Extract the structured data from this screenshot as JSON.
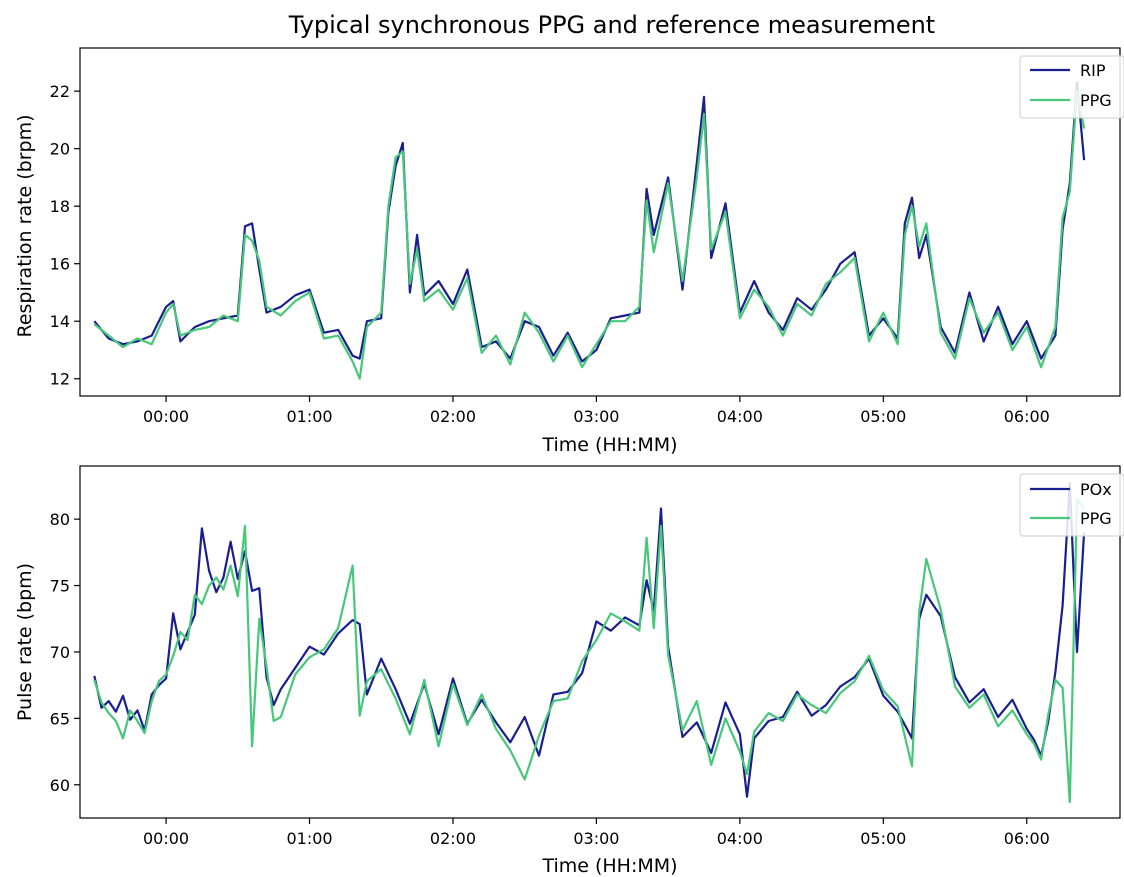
{
  "figure_title": "Typical synchronous PPG and reference measurement",
  "colors": {
    "reference": "#1a1f8f",
    "ppg": "#46c77a"
  },
  "chart_data": [
    {
      "type": "line",
      "xlabel": "Time (HH:MM)",
      "ylabel": "Respiration rate (brpm)",
      "x_ticks": [
        {
          "h": 0,
          "label": "00:00"
        },
        {
          "h": 1,
          "label": "01:00"
        },
        {
          "h": 2,
          "label": "02:00"
        },
        {
          "h": 3,
          "label": "03:00"
        },
        {
          "h": 4,
          "label": "04:00"
        },
        {
          "h": 5,
          "label": "05:00"
        },
        {
          "h": 6,
          "label": "06:00"
        }
      ],
      "y_ticks": [
        {
          "v": 12,
          "label": "12"
        },
        {
          "v": 14,
          "label": "14"
        },
        {
          "v": 16,
          "label": "16"
        },
        {
          "v": 18,
          "label": "18"
        },
        {
          "v": 20,
          "label": "20"
        },
        {
          "v": 22,
          "label": "22"
        }
      ],
      "xlim": [
        -0.6,
        6.65
      ],
      "ylim": [
        11.4,
        23.5
      ],
      "legend": {
        "position": "top-right",
        "entries": [
          "RIP",
          "PPG"
        ]
      },
      "grid": false,
      "x_hours": [
        -0.5,
        -0.4,
        -0.3,
        -0.2,
        -0.1,
        0.0,
        0.05,
        0.1,
        0.2,
        0.3,
        0.4,
        0.5,
        0.55,
        0.6,
        0.65,
        0.7,
        0.8,
        0.9,
        1.0,
        1.1,
        1.2,
        1.3,
        1.35,
        1.4,
        1.5,
        1.55,
        1.6,
        1.65,
        1.7,
        1.75,
        1.8,
        1.9,
        2.0,
        2.1,
        2.2,
        2.3,
        2.4,
        2.5,
        2.6,
        2.7,
        2.8,
        2.9,
        3.0,
        3.1,
        3.2,
        3.3,
        3.35,
        3.4,
        3.5,
        3.6,
        3.7,
        3.75,
        3.8,
        3.9,
        4.0,
        4.1,
        4.2,
        4.3,
        4.4,
        4.5,
        4.6,
        4.7,
        4.8,
        4.9,
        5.0,
        5.1,
        5.15,
        5.2,
        5.25,
        5.3,
        5.4,
        5.5,
        5.6,
        5.7,
        5.8,
        5.9,
        6.0,
        6.1,
        6.2,
        6.25,
        6.3,
        6.35,
        6.4
      ],
      "series": [
        {
          "name": "RIP",
          "color_key": "reference",
          "values": [
            14.0,
            13.4,
            13.2,
            13.3,
            13.5,
            14.5,
            14.7,
            13.3,
            13.8,
            14.0,
            14.1,
            14.2,
            17.3,
            17.4,
            15.8,
            14.3,
            14.5,
            14.9,
            15.1,
            13.6,
            13.7,
            12.8,
            12.7,
            14.0,
            14.1,
            17.8,
            19.4,
            20.2,
            15.0,
            17.0,
            14.9,
            15.4,
            14.6,
            15.8,
            13.1,
            13.3,
            12.7,
            14.0,
            13.8,
            12.8,
            13.6,
            12.6,
            13.0,
            14.1,
            14.2,
            14.3,
            18.6,
            17.0,
            19.0,
            15.1,
            19.5,
            21.8,
            16.2,
            18.1,
            14.3,
            15.4,
            14.3,
            13.7,
            14.8,
            14.4,
            15.1,
            16.0,
            16.4,
            13.5,
            14.1,
            13.4,
            17.4,
            18.3,
            16.2,
            17.0,
            13.8,
            12.9,
            15.0,
            13.3,
            14.5,
            13.2,
            14.0,
            12.7,
            13.5,
            17.2,
            18.8,
            22.3,
            19.6
          ]
        },
        {
          "name": "PPG",
          "color_key": "ppg",
          "values": [
            13.9,
            13.5,
            13.1,
            13.4,
            13.2,
            14.3,
            14.6,
            13.5,
            13.7,
            13.8,
            14.2,
            14.0,
            17.0,
            16.8,
            16.1,
            14.5,
            14.2,
            14.7,
            15.0,
            13.4,
            13.5,
            12.6,
            12.0,
            13.8,
            14.3,
            18.0,
            19.7,
            19.9,
            15.3,
            16.5,
            14.7,
            15.1,
            14.4,
            15.5,
            12.9,
            13.5,
            12.5,
            14.3,
            13.6,
            12.6,
            13.5,
            12.4,
            13.2,
            14.0,
            14.0,
            14.5,
            18.2,
            16.4,
            18.8,
            15.4,
            19.0,
            21.2,
            16.5,
            17.8,
            14.1,
            15.1,
            14.5,
            13.5,
            14.6,
            14.2,
            15.3,
            15.7,
            16.2,
            13.3,
            14.3,
            13.2,
            17.0,
            18.0,
            16.6,
            17.4,
            13.6,
            12.7,
            14.8,
            13.6,
            14.3,
            13.0,
            13.8,
            12.4,
            13.8,
            17.6,
            18.5,
            22.0,
            20.7
          ]
        }
      ]
    },
    {
      "type": "line",
      "xlabel": "Time (HH:MM)",
      "ylabel": "Pulse rate (bpm)",
      "x_ticks": [
        {
          "h": 0,
          "label": "00:00"
        },
        {
          "h": 1,
          "label": "01:00"
        },
        {
          "h": 2,
          "label": "02:00"
        },
        {
          "h": 3,
          "label": "03:00"
        },
        {
          "h": 4,
          "label": "04:00"
        },
        {
          "h": 5,
          "label": "05:00"
        },
        {
          "h": 6,
          "label": "06:00"
        }
      ],
      "y_ticks": [
        {
          "v": 60,
          "label": "60"
        },
        {
          "v": 65,
          "label": "65"
        },
        {
          "v": 70,
          "label": "70"
        },
        {
          "v": 75,
          "label": "75"
        },
        {
          "v": 80,
          "label": "80"
        }
      ],
      "xlim": [
        -0.6,
        6.65
      ],
      "ylim": [
        57.5,
        84.0
      ],
      "legend": {
        "position": "top-right",
        "entries": [
          "POx",
          "PPG"
        ]
      },
      "grid": false,
      "x_hours": [
        -0.5,
        -0.45,
        -0.4,
        -0.35,
        -0.3,
        -0.25,
        -0.2,
        -0.15,
        -0.1,
        -0.05,
        0.0,
        0.05,
        0.1,
        0.15,
        0.2,
        0.25,
        0.3,
        0.35,
        0.4,
        0.45,
        0.5,
        0.55,
        0.6,
        0.65,
        0.7,
        0.75,
        0.8,
        0.9,
        1.0,
        1.1,
        1.2,
        1.3,
        1.35,
        1.4,
        1.5,
        1.6,
        1.7,
        1.8,
        1.9,
        2.0,
        2.1,
        2.2,
        2.3,
        2.4,
        2.5,
        2.6,
        2.7,
        2.8,
        2.9,
        3.0,
        3.1,
        3.2,
        3.3,
        3.35,
        3.4,
        3.45,
        3.5,
        3.6,
        3.7,
        3.8,
        3.9,
        4.0,
        4.05,
        4.1,
        4.2,
        4.3,
        4.4,
        4.5,
        4.6,
        4.7,
        4.8,
        4.9,
        5.0,
        5.1,
        5.2,
        5.25,
        5.3,
        5.4,
        5.5,
        5.6,
        5.7,
        5.8,
        5.9,
        6.0,
        6.05,
        6.1,
        6.15,
        6.2,
        6.25,
        6.3,
        6.35,
        6.4
      ],
      "series": [
        {
          "name": "POx",
          "color_key": "reference",
          "values": [
            68.2,
            65.8,
            66.3,
            65.5,
            66.7,
            64.9,
            65.6,
            64.1,
            66.8,
            67.5,
            68.0,
            72.9,
            70.2,
            71.5,
            72.8,
            79.3,
            76.1,
            74.5,
            75.6,
            78.3,
            75.5,
            77.6,
            74.6,
            74.8,
            68.1,
            66.0,
            67.2,
            68.8,
            70.4,
            69.8,
            71.4,
            72.4,
            72.1,
            66.8,
            69.5,
            67.2,
            64.6,
            67.6,
            63.8,
            68.0,
            64.6,
            66.4,
            64.7,
            63.2,
            65.1,
            62.2,
            66.8,
            67.0,
            68.4,
            72.3,
            71.6,
            72.6,
            72.0,
            75.4,
            73.1,
            80.8,
            70.4,
            63.6,
            64.7,
            62.4,
            66.2,
            63.8,
            59.1,
            63.5,
            64.8,
            65.1,
            67.0,
            65.2,
            66.0,
            67.4,
            68.1,
            69.5,
            66.7,
            65.5,
            63.5,
            72.5,
            74.3,
            72.7,
            68.1,
            66.2,
            67.2,
            65.1,
            66.4,
            64.2,
            63.4,
            62.2,
            64.8,
            68.5,
            73.5,
            82.7,
            70.0,
            79.0
          ]
        },
        {
          "name": "PPG",
          "color_key": "ppg",
          "values": [
            67.9,
            66.2,
            65.4,
            64.8,
            63.5,
            65.6,
            64.8,
            63.9,
            66.3,
            67.8,
            68.3,
            69.7,
            71.5,
            70.9,
            74.3,
            73.6,
            75.0,
            75.6,
            74.7,
            76.5,
            74.2,
            79.5,
            62.9,
            72.5,
            68.9,
            64.8,
            65.1,
            68.3,
            69.6,
            70.2,
            71.8,
            76.5,
            65.2,
            67.8,
            68.7,
            66.5,
            63.8,
            67.9,
            62.9,
            67.6,
            64.5,
            66.8,
            64.2,
            62.6,
            60.4,
            63.7,
            66.3,
            66.5,
            69.3,
            70.9,
            72.9,
            72.3,
            71.6,
            78.6,
            71.8,
            79.5,
            69.8,
            64.1,
            66.3,
            61.5,
            65.0,
            62.5,
            60.8,
            64.0,
            65.4,
            64.8,
            66.8,
            66.0,
            65.4,
            66.9,
            67.8,
            69.7,
            67.1,
            65.9,
            61.4,
            73.0,
            77.0,
            73.2,
            67.4,
            65.8,
            66.8,
            64.4,
            65.6,
            63.8,
            63.1,
            61.9,
            65.3,
            67.9,
            67.3,
            58.7,
            81.5,
            80.8
          ]
        }
      ]
    }
  ]
}
